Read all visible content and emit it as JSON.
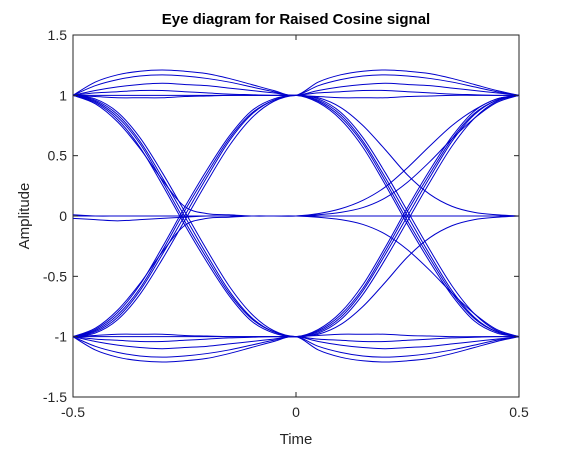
{
  "chart_data": {
    "type": "line",
    "title": "Eye diagram for Raised Cosine signal",
    "xlabel": "Time",
    "ylabel": "Amplitude",
    "xlim": [
      -0.5,
      0.5
    ],
    "ylim": [
      -1.5,
      1.5
    ],
    "x_ticks": [
      -0.5,
      0,
      0.5
    ],
    "x_tick_labels": [
      "-0.5",
      "0",
      "0.5"
    ],
    "y_ticks": [
      1.5,
      1,
      0.5,
      0,
      -0.5,
      -1,
      -1.5
    ],
    "y_tick_labels": [
      "1.5",
      "1",
      "0.5",
      "0",
      "-0.5",
      "-1",
      "-1.5"
    ],
    "grid": false,
    "legend": false,
    "line_color": "#0000cc",
    "x": [
      -0.5,
      -0.45,
      -0.4,
      -0.35,
      -0.3,
      -0.25,
      -0.2,
      -0.15,
      -0.1,
      -0.05,
      0,
      0.05,
      0.1,
      0.15,
      0.2,
      0.25,
      0.3,
      0.35,
      0.4,
      0.45,
      0.5
    ],
    "series": [
      {
        "values": [
          1,
          1.11,
          1.17,
          1.2,
          1.21,
          1.2,
          1.18,
          1.14,
          1.09,
          1.04,
          1,
          1.11,
          1.17,
          1.2,
          1.21,
          1.2,
          1.18,
          1.14,
          1.09,
          1.04,
          1
        ]
      },
      {
        "values": [
          1,
          1.08,
          1.13,
          1.16,
          1.17,
          1.16,
          1.14,
          1.11,
          1.07,
          1.03,
          1,
          1.08,
          1.13,
          1.16,
          1.17,
          1.16,
          1.14,
          1.11,
          1.07,
          1.03,
          1
        ]
      },
      {
        "values": [
          1,
          1.04,
          1.07,
          1.09,
          1.1,
          1.09,
          1.08,
          1.06,
          1.04,
          1.02,
          1,
          1.04,
          1.07,
          1.09,
          1.1,
          1.09,
          1.08,
          1.06,
          1.04,
          1.02,
          1
        ]
      },
      {
        "values": [
          1,
          1.02,
          1.03,
          1.04,
          1.04,
          1.03,
          1.02,
          1.01,
          1.005,
          1,
          1,
          1.02,
          1.03,
          1.04,
          1.04,
          1.03,
          1.02,
          1.01,
          1.005,
          1,
          1
        ]
      },
      {
        "values": [
          1,
          0.99,
          0.98,
          0.98,
          0.98,
          0.99,
          0.995,
          1,
          1,
          1,
          1,
          0.99,
          0.98,
          0.98,
          0.98,
          0.99,
          0.995,
          1,
          1,
          1,
          1
        ]
      },
      {
        "values": [
          -1,
          -1.11,
          -1.17,
          -1.2,
          -1.21,
          -1.2,
          -1.18,
          -1.14,
          -1.09,
          -1.04,
          -1,
          -1.11,
          -1.17,
          -1.2,
          -1.21,
          -1.2,
          -1.18,
          -1.14,
          -1.09,
          -1.04,
          -1
        ]
      },
      {
        "values": [
          -1,
          -1.08,
          -1.13,
          -1.16,
          -1.17,
          -1.16,
          -1.14,
          -1.11,
          -1.07,
          -1.03,
          -1,
          -1.08,
          -1.13,
          -1.16,
          -1.17,
          -1.16,
          -1.14,
          -1.11,
          -1.07,
          -1.03,
          -1
        ]
      },
      {
        "values": [
          -1,
          -1.04,
          -1.07,
          -1.09,
          -1.1,
          -1.09,
          -1.08,
          -1.06,
          -1.04,
          -1.02,
          -1,
          -1.04,
          -1.07,
          -1.09,
          -1.1,
          -1.09,
          -1.08,
          -1.06,
          -1.04,
          -1.02,
          -1
        ]
      },
      {
        "values": [
          -1,
          -1.02,
          -1.03,
          -1.04,
          -1.04,
          -1.03,
          -1.02,
          -1.01,
          -1.005,
          -1,
          -1,
          -1.02,
          -1.03,
          -1.04,
          -1.04,
          -1.03,
          -1.02,
          -1.01,
          -1.005,
          -1,
          -1
        ]
      },
      {
        "values": [
          -1,
          -0.99,
          -0.98,
          -0.98,
          -0.98,
          -0.99,
          -0.995,
          -1,
          -1,
          -1,
          -1,
          -0.99,
          -0.98,
          -0.98,
          -0.98,
          -0.99,
          -0.995,
          -1,
          -1,
          -1,
          -1
        ]
      },
      {
        "values": [
          1,
          0.96,
          0.84,
          0.62,
          0.32,
          0,
          -0.32,
          -0.62,
          -0.84,
          -0.96,
          -1,
          -0.96,
          -0.84,
          -0.62,
          -0.32,
          0,
          0.32,
          0.62,
          0.84,
          0.96,
          1
        ]
      },
      {
        "values": [
          1,
          0.95,
          0.82,
          0.6,
          0.29,
          -0.04,
          -0.35,
          -0.64,
          -0.85,
          -0.96,
          -1,
          -0.95,
          -0.82,
          -0.6,
          -0.29,
          0.04,
          0.35,
          0.64,
          0.85,
          0.96,
          1
        ]
      },
      {
        "values": [
          1,
          0.97,
          0.86,
          0.65,
          0.36,
          0.04,
          -0.28,
          -0.58,
          -0.81,
          -0.95,
          -1,
          -0.97,
          -0.86,
          -0.65,
          -0.36,
          -0.04,
          0.28,
          0.58,
          0.81,
          0.95,
          1
        ]
      },
      {
        "values": [
          1,
          0.94,
          0.8,
          0.57,
          0.26,
          -0.07,
          -0.38,
          -0.66,
          -0.87,
          -0.97,
          -1,
          -0.94,
          -0.8,
          -0.57,
          -0.26,
          0.07,
          0.38,
          0.66,
          0.87,
          0.97,
          1
        ]
      },
      {
        "values": [
          -1,
          -0.96,
          -0.84,
          -0.62,
          -0.32,
          0,
          0.32,
          0.62,
          0.84,
          0.96,
          1,
          0.96,
          0.84,
          0.62,
          0.32,
          0,
          -0.32,
          -0.62,
          -0.84,
          -0.96,
          -1
        ]
      },
      {
        "values": [
          -1,
          -0.95,
          -0.82,
          -0.6,
          -0.29,
          0.04,
          0.35,
          0.64,
          0.85,
          0.96,
          1,
          0.95,
          0.82,
          0.6,
          0.29,
          -0.04,
          -0.35,
          -0.64,
          -0.85,
          -0.96,
          -1
        ]
      },
      {
        "values": [
          -1,
          -0.97,
          -0.86,
          -0.65,
          -0.36,
          -0.04,
          0.28,
          0.58,
          0.81,
          0.95,
          1,
          0.97,
          0.86,
          0.65,
          0.36,
          0.04,
          -0.28,
          -0.58,
          -0.81,
          -0.95,
          -1
        ]
      },
      {
        "values": [
          -1,
          -0.94,
          -0.8,
          -0.57,
          -0.26,
          0.07,
          0.38,
          0.66,
          0.87,
          0.97,
          1,
          0.94,
          0.8,
          0.57,
          0.26,
          -0.07,
          -0.38,
          -0.66,
          -0.87,
          -0.97,
          -1
        ]
      },
      {
        "values": [
          1,
          0.93,
          0.78,
          0.56,
          0.3,
          0.08,
          0.02,
          0.01,
          0,
          0,
          0,
          0,
          0,
          0,
          0,
          0,
          0,
          0,
          0,
          0,
          0
        ]
      },
      {
        "values": [
          -1,
          -0.93,
          -0.78,
          -0.56,
          -0.3,
          -0.08,
          -0.02,
          -0.01,
          0,
          0,
          0,
          0,
          0,
          0,
          0,
          0,
          0,
          0,
          0,
          0,
          0
        ]
      },
      {
        "values": [
          0,
          0,
          0,
          0,
          0,
          0,
          0,
          0,
          0,
          0,
          0,
          0.01,
          0.03,
          0.07,
          0.15,
          0.28,
          0.45,
          0.64,
          0.81,
          0.94,
          1
        ]
      },
      {
        "values": [
          0,
          0,
          0,
          0,
          0,
          0,
          0,
          0,
          0,
          0,
          0,
          -0.01,
          -0.03,
          -0.07,
          -0.15,
          -0.28,
          -0.45,
          -0.64,
          -0.81,
          -0.94,
          -1
        ]
      },
      {
        "values": [
          1,
          1,
          1,
          1,
          1,
          1,
          1,
          1,
          1,
          1,
          1,
          0.98,
          0.9,
          0.75,
          0.55,
          0.34,
          0.18,
          0.08,
          0.03,
          0.01,
          0
        ]
      },
      {
        "values": [
          -1,
          -1,
          -1,
          -1,
          -1,
          -1,
          -1,
          -1,
          -1,
          -1,
          -1,
          -0.98,
          -0.9,
          -0.75,
          -0.55,
          -0.34,
          -0.18,
          -0.08,
          -0.03,
          -0.01,
          0
        ]
      },
      {
        "values": [
          -0.02,
          -0.03,
          -0.04,
          -0.03,
          -0.02,
          -0.01,
          0,
          0,
          0,
          0,
          0,
          0.02,
          0.06,
          0.13,
          0.24,
          0.4,
          0.58,
          0.75,
          0.88,
          0.97,
          1
        ]
      },
      {
        "values": [
          0.01,
          0,
          0,
          0,
          0,
          0,
          0,
          0,
          0,
          0,
          0,
          0,
          0,
          0,
          0,
          0,
          0,
          0,
          0,
          0,
          0
        ]
      }
    ]
  }
}
